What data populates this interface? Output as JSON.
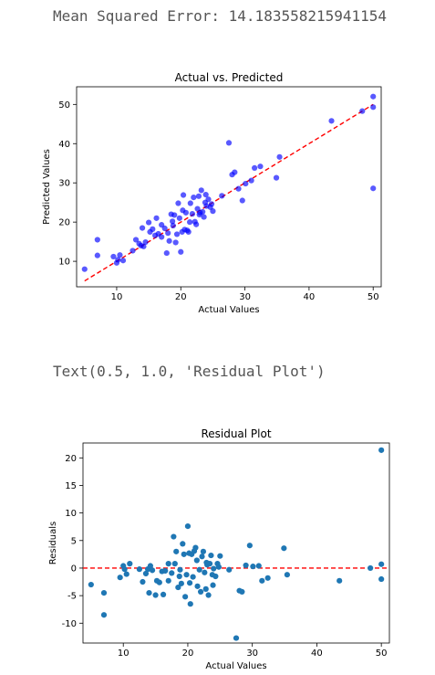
{
  "output": {
    "mse_line": "Mean Squared Error: 14.183558215941154",
    "text_repr": "Text(0.5, 1.0, 'Residual Plot')"
  },
  "chart_data": [
    {
      "type": "scatter",
      "title": "Actual vs. Predicted",
      "xlabel": "Actual Values",
      "ylabel": "Predicted Values",
      "xlim": [
        3.75,
        51.25
      ],
      "ylim": [
        3.5,
        54.5
      ],
      "xticks": [
        10,
        20,
        30,
        40,
        50
      ],
      "yticks": [
        10,
        20,
        30,
        40,
        50
      ],
      "point_color": "#0000ff",
      "line_color": "#ff0000",
      "reference_line": {
        "x": [
          5,
          50
        ],
        "y": [
          5,
          50
        ],
        "style": "dashed"
      },
      "points": {
        "x": [
          5.0,
          7.0,
          7.0,
          9.5,
          10.0,
          10.2,
          10.5,
          11.0,
          12.5,
          13.0,
          13.5,
          13.8,
          14.0,
          14.2,
          14.5,
          15.0,
          15.2,
          15.6,
          16.0,
          16.5,
          17.0,
          17.5,
          17.8,
          18.0,
          18.2,
          18.5,
          18.7,
          19.0,
          19.2,
          19.4,
          19.6,
          19.8,
          20.0,
          20.2,
          20.4,
          20.6,
          20.8,
          21.0,
          21.2,
          21.5,
          21.8,
          22.0,
          22.2,
          22.4,
          22.6,
          22.8,
          23.0,
          23.2,
          23.4,
          23.6,
          23.8,
          24.0,
          24.3,
          24.6,
          25.0,
          26.4,
          27.5,
          28.0,
          28.4,
          29.0,
          29.6,
          30.1,
          31.0,
          31.5,
          32.4,
          34.9,
          35.4,
          43.5,
          48.3,
          50.0,
          50.0,
          50.0,
          17.0,
          18.8,
          20.3,
          21.4,
          22.9,
          23.9,
          16.2,
          24.8
        ],
        "y": [
          8.0,
          15.5,
          11.5,
          11.2,
          9.6,
          10.4,
          11.6,
          10.2,
          12.7,
          15.5,
          14.5,
          14.0,
          18.5,
          13.8,
          14.9,
          19.9,
          17.5,
          18.2,
          16.6,
          17.0,
          19.3,
          18.4,
          12.1,
          17.2,
          15.2,
          22.0,
          20.2,
          21.8,
          14.8,
          16.9,
          24.8,
          21.0,
          12.4,
          17.5,
          26.9,
          18.1,
          22.4,
          17.9,
          17.5,
          24.8,
          22.1,
          26.3,
          20.1,
          19.4,
          23.4,
          26.6,
          22.4,
          28.1,
          22.6,
          21.3,
          25.0,
          24.1,
          25.8,
          23.8,
          22.8,
          26.7,
          40.2,
          32.1,
          32.7,
          28.5,
          25.5,
          29.8,
          30.6,
          33.8,
          34.2,
          31.3,
          36.6,
          45.8,
          48.3,
          52.0,
          49.3,
          28.6,
          16.2,
          19.1,
          23.0,
          20.0,
          21.9,
          27.0,
          21.0,
          24.6
        ]
      }
    },
    {
      "type": "scatter",
      "title": "Residual Plot",
      "xlabel": "Actual Values",
      "ylabel": "Residuals",
      "xlim": [
        3.75,
        51.25
      ],
      "ylim": [
        -13.6,
        22.7
      ],
      "xticks": [
        10,
        20,
        30,
        40,
        50
      ],
      "yticks": [
        -10,
        -5,
        0,
        5,
        10,
        15,
        20
      ],
      "point_color": "#1f77b4",
      "line_color": "#ff0000",
      "reference_line": {
        "y": 0,
        "style": "dashed"
      },
      "points": {
        "x": [
          5.0,
          7.0,
          7.0,
          9.5,
          10.0,
          10.2,
          10.5,
          11.0,
          12.5,
          13.0,
          13.5,
          13.8,
          14.0,
          14.2,
          14.5,
          15.0,
          15.2,
          15.6,
          16.0,
          16.5,
          17.0,
          17.5,
          17.8,
          18.0,
          18.2,
          18.5,
          18.7,
          19.0,
          19.2,
          19.4,
          19.6,
          19.8,
          20.0,
          20.2,
          20.4,
          20.6,
          20.8,
          21.0,
          21.2,
          21.5,
          21.8,
          22.0,
          22.2,
          22.4,
          22.6,
          22.8,
          23.0,
          23.2,
          23.4,
          23.6,
          23.8,
          24.0,
          24.3,
          24.6,
          25.0,
          26.4,
          27.5,
          28.0,
          28.4,
          29.0,
          29.6,
          30.1,
          31.0,
          31.5,
          32.4,
          34.9,
          35.4,
          43.5,
          48.3,
          50.0,
          50.0,
          50.0,
          17.0,
          18.8,
          20.3,
          21.4,
          22.9,
          23.9,
          16.2,
          24.8
        ],
        "y": [
          -3.0,
          -8.5,
          -4.5,
          -1.7,
          0.4,
          -0.2,
          -1.1,
          0.8,
          -0.2,
          -2.5,
          -1.0,
          -0.2,
          -4.5,
          0.4,
          -0.4,
          -4.9,
          -2.3,
          -2.6,
          -0.6,
          -0.5,
          -2.3,
          -0.9,
          5.7,
          0.8,
          3.0,
          -3.5,
          -1.5,
          -2.8,
          4.4,
          2.5,
          -5.2,
          -1.2,
          7.6,
          2.7,
          -6.5,
          2.5,
          -1.6,
          3.1,
          3.7,
          -3.3,
          -0.3,
          -4.3,
          2.1,
          3.0,
          -0.8,
          -3.8,
          0.6,
          -4.9,
          0.8,
          2.3,
          -1.2,
          -0.1,
          -1.5,
          0.8,
          2.2,
          -0.3,
          -12.7,
          -4.1,
          -4.3,
          0.5,
          4.1,
          0.3,
          0.4,
          -2.3,
          -1.8,
          3.6,
          -1.2,
          -2.3,
          0.0,
          -2.0,
          0.7,
          21.4,
          0.8,
          -0.3,
          -2.7,
          1.4,
          1.0,
          -3.1,
          -4.8,
          0.2
        ]
      }
    }
  ]
}
